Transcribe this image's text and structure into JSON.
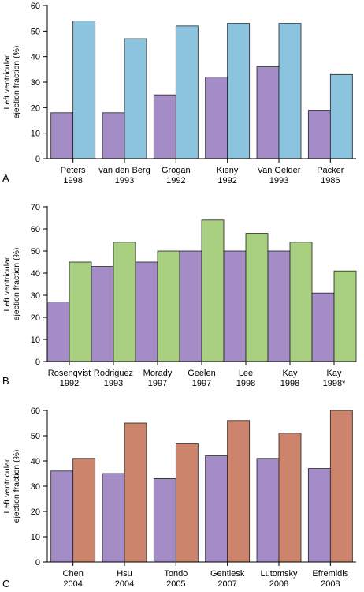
{
  "chart_data": [
    {
      "panel": "A",
      "type": "bar",
      "ylabel_lines": [
        "Left ventricular",
        "ejection fraction (%)"
      ],
      "ylim": [
        0,
        60
      ],
      "yticks": [
        0,
        10,
        20,
        30,
        40,
        50,
        60
      ],
      "categories": [
        [
          "Peters",
          "1998"
        ],
        [
          "van den Berg",
          "1993"
        ],
        [
          "Grogan",
          "1992"
        ],
        [
          "Kieny",
          "1992"
        ],
        [
          "Van Gelder",
          "1993"
        ],
        [
          "Packer",
          "1986"
        ]
      ],
      "series": [
        {
          "values": [
            18,
            18,
            25,
            32,
            36,
            19
          ],
          "color": "#a48cc6"
        },
        {
          "values": [
            54,
            47,
            52,
            53,
            53,
            33
          ],
          "color": "#8cc4e0"
        }
      ]
    },
    {
      "panel": "B",
      "type": "bar",
      "ylabel_lines": [
        "Left ventricular",
        "ejection fraction (%)"
      ],
      "ylim": [
        0,
        70
      ],
      "yticks": [
        0,
        10,
        20,
        30,
        40,
        50,
        60,
        70
      ],
      "categories": [
        [
          "Rosenqvist",
          "1992"
        ],
        [
          "Rodriguez",
          "1993"
        ],
        [
          "Morady",
          "1997"
        ],
        [
          "Geelen",
          "1997"
        ],
        [
          "Lee",
          "1998"
        ],
        [
          "Kay",
          "1998"
        ],
        [
          "Kay",
          "1998*"
        ]
      ],
      "series": [
        {
          "values": [
            27,
            43,
            45,
            50,
            50,
            50,
            31
          ],
          "color": "#a48cc6"
        },
        {
          "values": [
            45,
            54,
            50,
            64,
            58,
            54,
            41
          ],
          "color": "#a8d080"
        }
      ]
    },
    {
      "panel": "C",
      "type": "bar",
      "ylabel_lines": [
        "Left ventricular",
        "ejection fraction (%)"
      ],
      "ylim": [
        0,
        60
      ],
      "yticks": [
        0,
        10,
        20,
        30,
        40,
        50,
        60
      ],
      "categories": [
        [
          "Chen",
          "2004"
        ],
        [
          "Hsu",
          "2004"
        ],
        [
          "Tondo",
          "2005"
        ],
        [
          "Gentlesk",
          "2007"
        ],
        [
          "Lutomsky",
          "2008"
        ],
        [
          "Efremidis",
          "2008"
        ]
      ],
      "series": [
        {
          "values": [
            36,
            35,
            33,
            42,
            41,
            37
          ],
          "color": "#a48cc6"
        },
        {
          "values": [
            41,
            55,
            47,
            56,
            51,
            60
          ],
          "color": "#cc846c"
        }
      ]
    }
  ]
}
